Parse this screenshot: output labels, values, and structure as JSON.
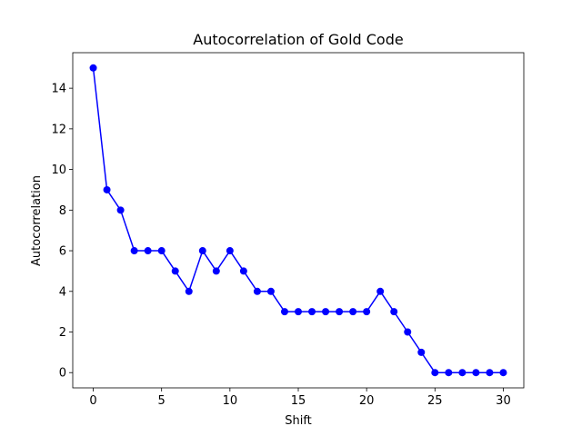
{
  "chart_data": {
    "type": "line",
    "title": "Autocorrelation of Gold Code",
    "xlabel": "Shift",
    "ylabel": "Autocorrelation",
    "x": [
      0,
      1,
      2,
      3,
      4,
      5,
      6,
      7,
      8,
      9,
      10,
      11,
      12,
      13,
      14,
      15,
      16,
      17,
      18,
      19,
      20,
      21,
      22,
      23,
      24,
      25,
      26,
      27,
      28,
      29,
      30
    ],
    "series": [
      {
        "values": [
          15,
          9,
          8,
          6,
          6,
          6,
          5,
          4,
          6,
          5,
          6,
          5,
          4,
          4,
          3,
          3,
          3,
          3,
          3,
          3,
          3,
          4,
          3,
          2,
          1,
          0,
          0,
          0,
          0,
          0,
          0
        ],
        "color": "#0000ff",
        "marker": "circle"
      }
    ],
    "xlim": [
      -1.5,
      31.5
    ],
    "ylim": [
      -0.75,
      15.75
    ],
    "xticks": [
      "0",
      "5",
      "10",
      "15",
      "20",
      "25",
      "30"
    ],
    "yticks": [
      "0",
      "2",
      "4",
      "6",
      "8",
      "10",
      "12",
      "14"
    ],
    "grid": false,
    "legend": "none"
  }
}
